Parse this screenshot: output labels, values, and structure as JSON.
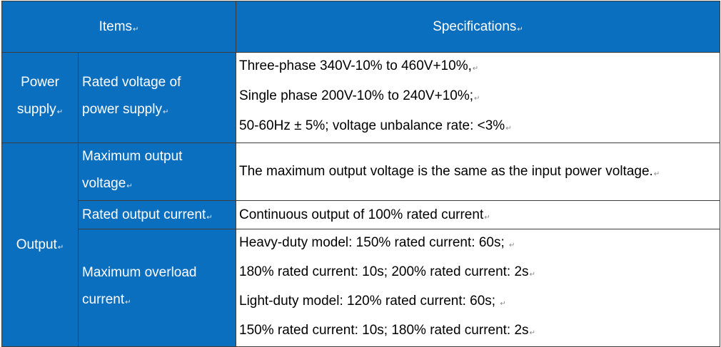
{
  "table": {
    "header": {
      "items": "Items",
      "specifications": "Specifications"
    },
    "power_supply": {
      "category": [
        "Power",
        "supply"
      ],
      "item": [
        "Rated voltage of",
        "power supply"
      ],
      "spec": [
        "Three-phase 340V-10% to 460V+10%,",
        "Single phase 200V-10% to 240V+10%;",
        "50-60Hz ± 5%; voltage unbalance rate: <3%"
      ]
    },
    "output": {
      "category": "Output",
      "max_voltage": {
        "item": [
          "Maximum output",
          "voltage"
        ],
        "spec": "The maximum output voltage is the same as the input power voltage."
      },
      "rated_current": {
        "item": "Rated output current",
        "spec": "Continuous output of 100% rated current"
      },
      "overload": {
        "item": [
          "Maximum overload",
          "current"
        ],
        "spec": [
          "Heavy-duty model: 150% rated current: 60s;",
          "180% rated current: 10s; 200% rated current: 2s",
          "Light-duty model: 120% rated current: 60s;",
          "150% rated current: 10s; 180% rated current: 2s"
        ]
      }
    },
    "paragraph_mark": "↵"
  }
}
